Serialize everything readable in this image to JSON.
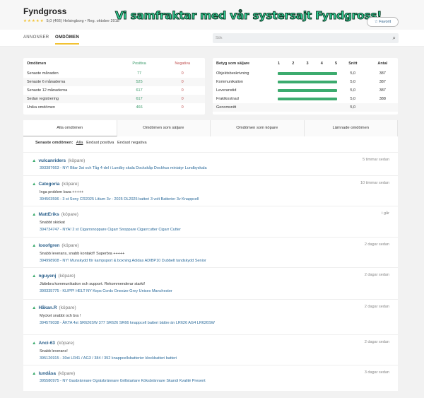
{
  "header": {
    "title": "Fyndgross",
    "stars": "★★★★★",
    "rating": "5,0 (466) Helsingborg • Reg. oktober 2018",
    "banner": "Vi samfraktar med vår systersajt Fyndgross!",
    "favorite": "☆ Favorit"
  },
  "nav": {
    "tabs": [
      "ANNONSER",
      "OMDÖMEN"
    ],
    "active": "OMDÖMEN",
    "search_placeholder": "Sök"
  },
  "summary": {
    "headers": [
      "Omdömen",
      "Positiva",
      "Negativa"
    ],
    "rows": [
      [
        "Senaste månaden",
        "77",
        "0"
      ],
      [
        "Senaste 6 månaderna",
        "525",
        "0"
      ],
      [
        "Senaste 12 månaderna",
        "617",
        "0"
      ],
      [
        "Sedan registrering",
        "617",
        "0"
      ],
      [
        "Unika omdömen",
        "466",
        "0"
      ]
    ]
  },
  "seller_rating": {
    "headers": [
      "Betyg som säljare",
      "1",
      "2",
      "3",
      "4",
      "5",
      "Snitt",
      "Antal"
    ],
    "scale_max": 5,
    "rows": [
      {
        "label": "Objektsbeskrivning",
        "avg": "5,0",
        "count": "387",
        "value": 5
      },
      {
        "label": "Kommunikation",
        "avg": "5,0",
        "count": "387",
        "value": 5
      },
      {
        "label": "Leveranstid",
        "avg": "5,0",
        "count": "387",
        "value": 5
      },
      {
        "label": "Fraktkostnad",
        "avg": "5,0",
        "count": "388",
        "value": 5
      }
    ],
    "total_label": "Genomsnitt",
    "total_avg": "5,0"
  },
  "tabs": [
    "Alla omdömen",
    "Omdömen som säljare",
    "Omdömen som köpare",
    "Lämnade omdömen"
  ],
  "filter": {
    "label": "Senaste omdömen:",
    "options": [
      "Alla",
      "Endast positiva",
      "Endast negativa"
    ]
  },
  "colors": {
    "accent": "#f2c232",
    "positive": "#3cab6e",
    "link": "#2a5f8a"
  },
  "reviews": [
    {
      "user": "vulcanriders",
      "role": "(köpare)",
      "time": "5 timmar sedan",
      "comment": "",
      "item": "393387663 - NY! Bilar 3st och Tåg 4-del i Lundby skala Dockskåp Dockhus miniatyr Lundbyskala"
    },
    {
      "user": "Categoria",
      "role": "(köpare)",
      "time": "10 timmar sedan",
      "comment": "Inga problem bara +++++",
      "item": "394503596 - 3 st Sony CR2025 Litium 3v - 2025 DL2025 batteri 3 volt Batterier 3v Knappcell"
    },
    {
      "user": "MattEriks",
      "role": "(köpare)",
      "time": "i går",
      "comment": "Snabbt skickat",
      "item": "394734747 - NYA! 2 st Cigarrsnoppare Cigarr Snoppare Cigarrcutter Cigarr Cutter"
    },
    {
      "user": "looofgren",
      "role": "(köpare)",
      "time": "2 dagar sedan",
      "comment": "Snabb leverans, snabb kontakt!! Superbra +++++",
      "item": "394998908 - NY! Munskydd för kampsport & boxning Adidas ADIBP10 Dubbelt tandskydd Senior"
    },
    {
      "user": "nguyenj",
      "role": "(köpare)",
      "time": "2 dagar sedan",
      "comment": "Jättebra kommunikation och support. Rekommenderar starkt!",
      "item": "390335775 - KLIPP! HELT NY Keps Cords Onesize Grey Unisex Manchester"
    },
    {
      "user": "Håkan.R",
      "role": "(köpare)",
      "time": "2 dagar sedan",
      "comment": "Mycket snabbt och bra !",
      "item": "394579038 - ÄKTA 4st SR626SW 377 SR626 SR66 knappcell batteri bättre än LR626 AG4 LR626SW"
    },
    {
      "user": "Anci-63",
      "role": "(köpare)",
      "time": "2 dagar sedan",
      "comment": "Snabb leverans!",
      "item": "395126915 - 30st LR41 / AG3 / 384 / 392 knappcellsbatterier klockbatteri batteri"
    },
    {
      "user": "lundåsa",
      "role": "(köpare)",
      "time": "3 dagar sedan",
      "comment": "",
      "item": "395580975 - NY Gasbrännare Ogräsbrännare Grillstartare Köksbrännare Skandi Kvalité Present"
    }
  ]
}
